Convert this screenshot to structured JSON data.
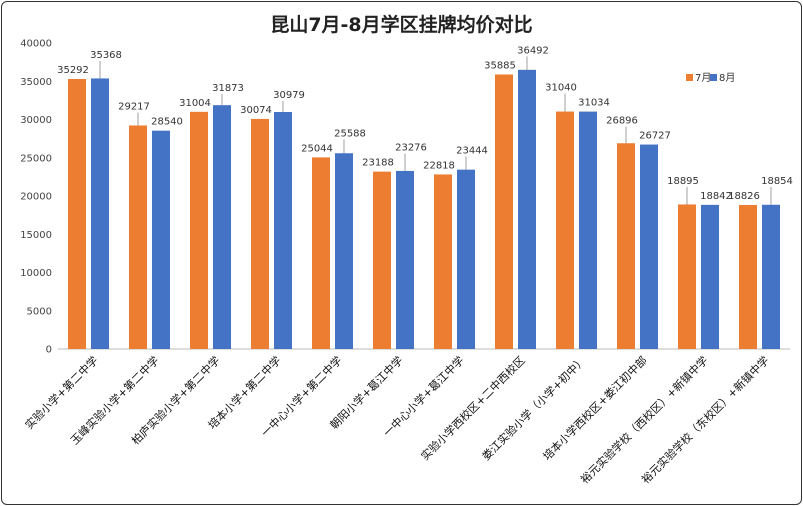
{
  "chart_data": {
    "type": "bar",
    "title": "昆山7月-8月学区挂牌均价对比",
    "xlabel": "",
    "ylabel": "",
    "ylim": [
      0,
      40000
    ],
    "yticks": [
      0,
      5000,
      10000,
      15000,
      20000,
      25000,
      30000,
      35000,
      40000
    ],
    "grid": false,
    "legend_position": "top-right",
    "categories": [
      "实验小学+第二中学",
      "玉峰实验小学+第二中学",
      "柏庐实验小学+第二中学",
      "培本小学+第二中学",
      "一中心小学+第二中学",
      "朝阳小学+葛江中学",
      "一中心小学+葛江中学",
      "实验小学西校区+二中西校区",
      "娄江实验小学（小学+初中）",
      "培本小学西校区+娄江初中部",
      "裕元实验学校（西校区）+新镇中学",
      "裕元实验学校（东校区）+新镇中学"
    ],
    "series": [
      {
        "name": "7月",
        "color": "#ED7D31",
        "values": [
          35292,
          29217,
          31004,
          30074,
          25044,
          23188,
          22818,
          35885,
          31040,
          26896,
          18895,
          18826
        ]
      },
      {
        "name": "8月",
        "color": "#4472C4",
        "values": [
          35368,
          28540,
          31873,
          30979,
          25588,
          23276,
          23444,
          36492,
          31034,
          26727,
          18842,
          18854
        ]
      }
    ]
  }
}
